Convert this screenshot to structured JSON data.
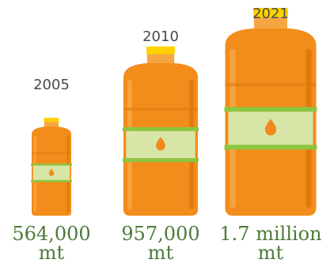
{
  "chart_data": {
    "type": "bar",
    "categories": [
      "2005",
      "2010",
      "2021"
    ],
    "values": [
      564000,
      957000,
      1700000
    ],
    "value_labels": [
      [
        "564,000",
        "mt"
      ],
      [
        "957,000",
        "mt"
      ],
      [
        "1.7 million",
        "mt"
      ]
    ],
    "title": "",
    "xlabel": "",
    "ylabel": "",
    "colors": {
      "bottle": "#f28c1b",
      "bottle_light": "#f6a43c",
      "bottle_dark": "#e07a10",
      "neck": "#f6a640",
      "cap": "#ffd200",
      "label": "#d7e6a6",
      "label_band": "#8cc63f",
      "drop": "#f08a1c",
      "year_text": "#4a4a4a",
      "value_text": "#4c7a3a"
    }
  }
}
